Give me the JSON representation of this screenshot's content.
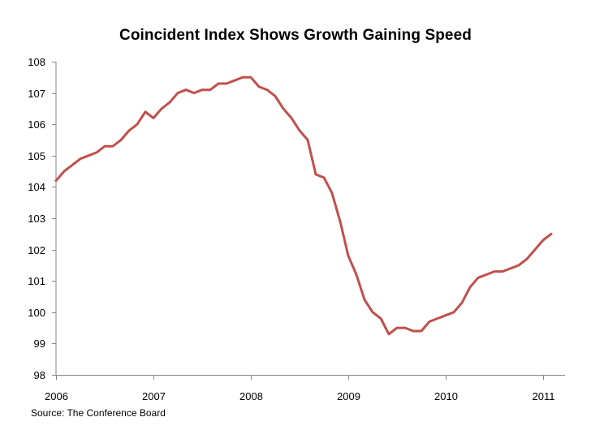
{
  "chart_data": {
    "type": "line",
    "title": "Coincident Index Shows Growth Gaining Speed",
    "source": "Source: The Conference Board",
    "xlabel": "",
    "ylabel": "",
    "ylim": [
      98,
      108
    ],
    "yticks": [
      "98",
      "99",
      "100",
      "101",
      "102",
      "103",
      "104",
      "105",
      "106",
      "107",
      "108"
    ],
    "xlim": [
      2006,
      2011.25
    ],
    "xticks": [
      {
        "label": "2006",
        "value": 2006
      },
      {
        "label": "2007",
        "value": 2007
      },
      {
        "label": "2008",
        "value": 2008
      },
      {
        "label": "2009",
        "value": 2009
      },
      {
        "label": "2010",
        "value": 2010
      },
      {
        "label": "2011",
        "value": 2011
      }
    ],
    "grid": false,
    "series": [
      {
        "name": "Coincident Index",
        "color": "#c0504d",
        "x": [
          2006.0,
          2006.083,
          2006.167,
          2006.25,
          2006.333,
          2006.417,
          2006.5,
          2006.583,
          2006.667,
          2006.75,
          2006.833,
          2006.917,
          2007.0,
          2007.083,
          2007.167,
          2007.25,
          2007.333,
          2007.417,
          2007.5,
          2007.583,
          2007.667,
          2007.75,
          2007.833,
          2007.917,
          2008.0,
          2008.083,
          2008.167,
          2008.25,
          2008.333,
          2008.417,
          2008.5,
          2008.583,
          2008.667,
          2008.75,
          2008.833,
          2008.917,
          2009.0,
          2009.083,
          2009.167,
          2009.25,
          2009.333,
          2009.417,
          2009.5,
          2009.583,
          2009.667,
          2009.75,
          2009.833,
          2009.917,
          2010.0,
          2010.083,
          2010.167,
          2010.25,
          2010.333,
          2010.417,
          2010.5,
          2010.583,
          2010.667,
          2010.75,
          2010.833,
          2010.917,
          2011.0,
          2011.083
        ],
        "values": [
          104.2,
          104.5,
          104.7,
          104.9,
          105.0,
          105.1,
          105.3,
          105.3,
          105.5,
          105.8,
          106.0,
          106.4,
          106.2,
          106.5,
          106.7,
          107.0,
          107.1,
          107.0,
          107.1,
          107.1,
          107.3,
          107.3,
          107.4,
          107.5,
          107.5,
          107.2,
          107.1,
          106.9,
          106.5,
          106.2,
          105.8,
          105.5,
          104.4,
          104.3,
          103.8,
          102.9,
          101.8,
          101.2,
          100.4,
          100.0,
          99.8,
          99.3,
          99.5,
          99.5,
          99.4,
          99.4,
          99.7,
          99.8,
          99.9,
          100.0,
          100.3,
          100.8,
          101.1,
          101.2,
          101.3,
          101.3,
          101.4,
          101.5,
          101.7,
          102.0,
          102.3,
          102.5
        ]
      }
    ]
  }
}
